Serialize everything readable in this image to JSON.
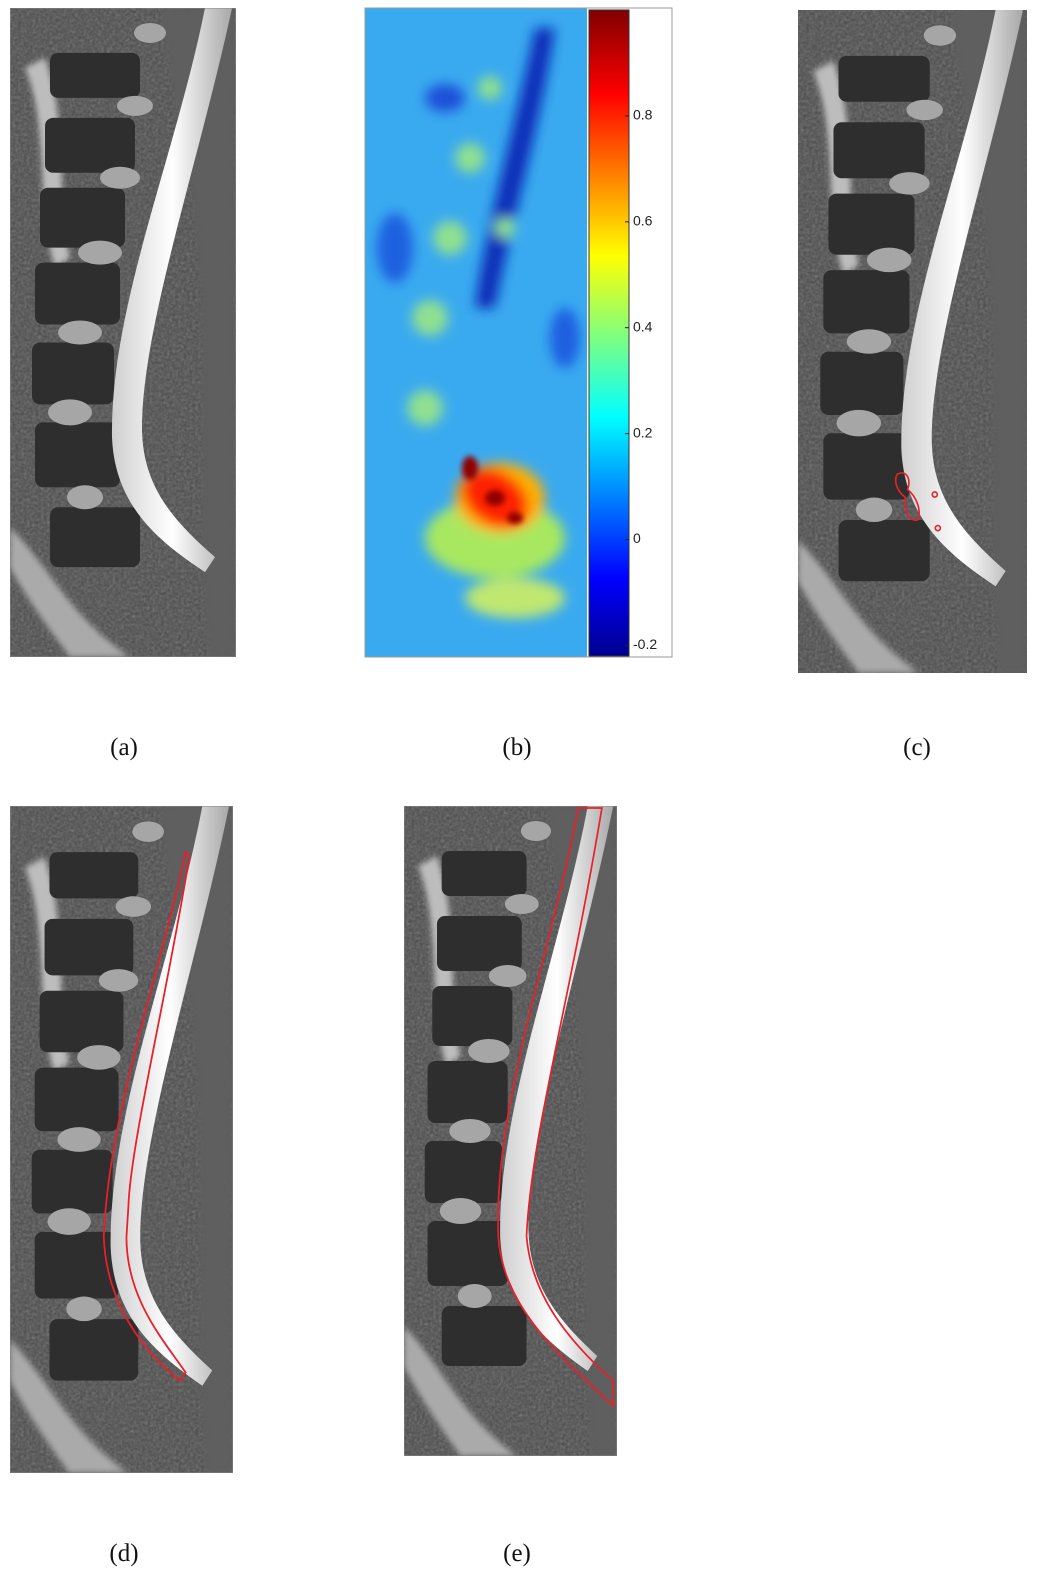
{
  "panels": [
    {
      "label": "(a)"
    },
    {
      "label": "(b)"
    },
    {
      "label": "(c)"
    },
    {
      "label": "(d)"
    },
    {
      "label": "(e)"
    }
  ],
  "colorbar": {
    "range": [
      -0.22,
      1
    ],
    "ticks": [
      0.8,
      0.6,
      0.4,
      0.2,
      0,
      -0.2
    ]
  }
}
